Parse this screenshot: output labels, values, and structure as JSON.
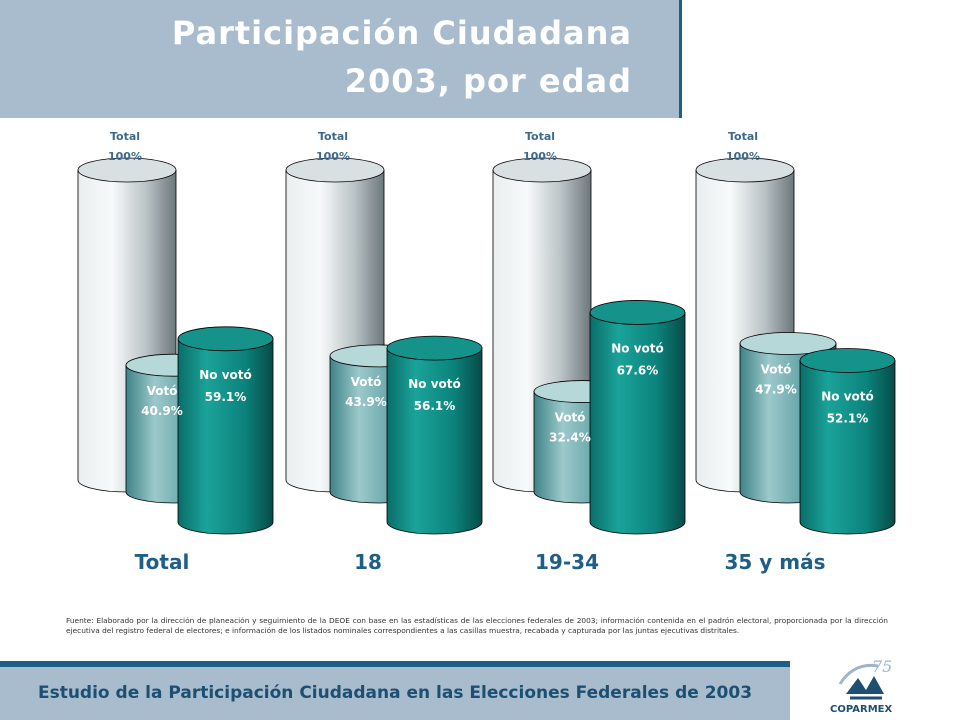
{
  "title": {
    "line1": "Participación Ciudadana",
    "line2": "2003, por edad"
  },
  "chart_data": {
    "type": "bar",
    "categories": [
      "Total",
      "18",
      "19-34",
      "35 y más"
    ],
    "series": [
      {
        "name": "Total",
        "values": [
          100,
          100,
          100,
          100
        ]
      },
      {
        "name": "Votó",
        "values": [
          40.9,
          43.9,
          32.4,
          47.9
        ]
      },
      {
        "name": "No votó",
        "values": [
          59.1,
          56.1,
          67.6,
          52.1
        ]
      }
    ],
    "value_labels": {
      "Total": [
        "100%",
        "100%",
        "100%",
        "100%"
      ],
      "Votó": [
        "40.9%",
        "43.9%",
        "32.4%",
        "47.9%"
      ],
      "No votó": [
        "59.1%",
        "56.1%",
        "67.6%",
        "52.1%"
      ]
    },
    "style": "3d-cylinder",
    "colors": {
      "Total": "#c8d0d2",
      "Votó": "#7fb0b3",
      "No votó": "#0d807a"
    },
    "grid": false,
    "legend": "none"
  },
  "source": "Fuente: Elaborado por la dirección de planeación y seguimiento de la DEOE con base en las estadísticas de las elecciones federales de 2003; información contenida en el padrón electoral, proporcionada por la dirección ejecutiva del registro federal de electores; e información de los listados nominales correspondientes a las casillas muestra, recabada y capturada por las juntas ejecutivas distritales.",
  "footer": "Estudio de la Participación Ciudadana en las Elecciones Federales de 2003",
  "logo": {
    "brand": "COPARMEX",
    "mark": "75"
  },
  "colors": {
    "title_band": "#a9bccd",
    "accent": "#1f5f86",
    "footer_text": "#1d4f72"
  }
}
